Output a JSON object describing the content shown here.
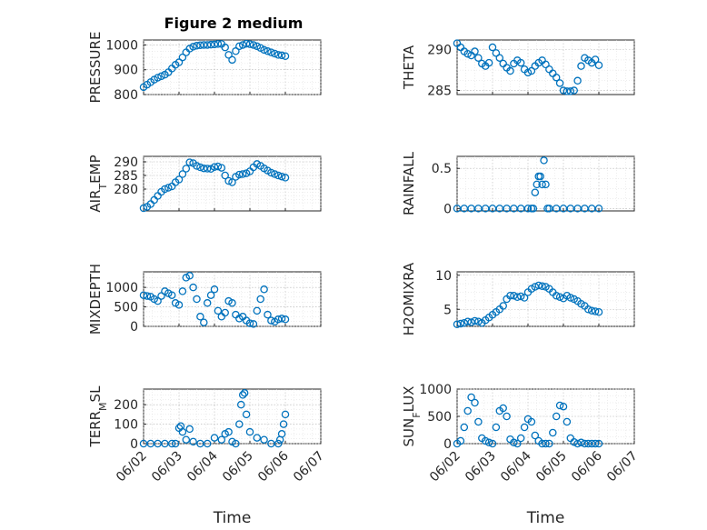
{
  "figure_title": "Figure 2 medium",
  "colors": {
    "marker": "#0072BD",
    "axis": "#262626",
    "grid": "#b8b8b8"
  },
  "chart_data": [
    {
      "type": "scatter",
      "ylabel": "PRESSURE",
      "title": "Figure 2 medium",
      "xlim": [
        0,
        5
      ],
      "ylim": [
        800,
        1020
      ],
      "yticks": [
        {
          "v": 800,
          "label": "800"
        },
        {
          "v": 900,
          "label": "900"
        },
        {
          "v": 1000,
          "label": "1000"
        }
      ],
      "x": [
        0,
        0.1,
        0.2,
        0.3,
        0.4,
        0.5,
        0.6,
        0.7,
        0.8,
        0.9,
        1.0,
        1.1,
        1.2,
        1.3,
        1.4,
        1.5,
        1.6,
        1.7,
        1.8,
        1.9,
        2.0,
        2.1,
        2.2,
        2.3,
        2.4,
        2.5,
        2.6,
        2.7,
        2.8,
        2.9,
        3.0,
        3.1,
        3.2,
        3.3,
        3.4,
        3.5,
        3.6,
        3.7,
        3.8,
        3.9,
        4.0
      ],
      "y": [
        830,
        840,
        850,
        860,
        868,
        874,
        880,
        890,
        905,
        920,
        930,
        950,
        970,
        985,
        993,
        997,
        999,
        1000,
        1000,
        1001,
        1002,
        1004,
        1004,
        990,
        960,
        940,
        975,
        995,
        1000,
        1005,
        1003,
        1000,
        995,
        988,
        980,
        975,
        970,
        965,
        960,
        958,
        955
      ]
    },
    {
      "type": "scatter",
      "ylabel": "THETA",
      "xlim": [
        0,
        5
      ],
      "ylim": [
        284.5,
        291.2
      ],
      "yticks": [
        {
          "v": 285,
          "label": "285"
        },
        {
          "v": 290,
          "label": "290"
        }
      ],
      "x": [
        0,
        0.1,
        0.2,
        0.3,
        0.4,
        0.5,
        0.6,
        0.7,
        0.8,
        0.9,
        1.0,
        1.1,
        1.2,
        1.3,
        1.4,
        1.5,
        1.6,
        1.7,
        1.8,
        1.9,
        2.0,
        2.1,
        2.2,
        2.3,
        2.4,
        2.5,
        2.6,
        2.7,
        2.8,
        2.9,
        3.0,
        3.1,
        3.2,
        3.3,
        3.4,
        3.5,
        3.6,
        3.7,
        3.8,
        3.9,
        4.0
      ],
      "y": [
        290.8,
        290.3,
        289.8,
        289.5,
        289.3,
        289.8,
        289.0,
        288.3,
        288.0,
        288.4,
        290.3,
        289.6,
        289.0,
        288.3,
        287.8,
        287.4,
        288.3,
        288.7,
        288.4,
        287.6,
        287.2,
        287.4,
        288.0,
        288.4,
        288.7,
        288.2,
        287.6,
        287.1,
        286.6,
        285.9,
        285.0,
        284.9,
        284.9,
        285.0,
        286.2,
        288.0,
        289.0,
        288.7,
        288.4,
        288.8,
        288.1
      ]
    },
    {
      "type": "scatter",
      "ylabel": "AIR",
      "ylabel_sub": "T",
      "ylabel_suffix": "EMP",
      "xlim": [
        0,
        5
      ],
      "ylim": [
        272,
        292
      ],
      "yticks": [
        {
          "v": 280,
          "label": "280"
        },
        {
          "v": 285,
          "label": "285"
        },
        {
          "v": 290,
          "label": "290"
        }
      ],
      "x": [
        0,
        0.1,
        0.2,
        0.3,
        0.4,
        0.5,
        0.6,
        0.7,
        0.8,
        0.9,
        1.0,
        1.1,
        1.2,
        1.3,
        1.4,
        1.5,
        1.6,
        1.7,
        1.8,
        1.9,
        2.0,
        2.1,
        2.2,
        2.3,
        2.4,
        2.5,
        2.6,
        2.7,
        2.8,
        2.9,
        3.0,
        3.1,
        3.2,
        3.3,
        3.4,
        3.5,
        3.6,
        3.7,
        3.8,
        3.9,
        4.0
      ],
      "y": [
        273,
        273.5,
        274.5,
        276,
        277.5,
        279,
        280,
        280.5,
        281,
        282.5,
        283.5,
        285.5,
        287.5,
        289.8,
        289.5,
        288.5,
        288,
        287.6,
        287.5,
        287.4,
        288.1,
        288.3,
        287.8,
        285,
        283,
        282.5,
        284.5,
        285.3,
        285.5,
        285.8,
        286.5,
        288,
        289.2,
        288.5,
        287.6,
        286.8,
        286,
        285.5,
        285,
        284.6,
        284.2
      ]
    },
    {
      "type": "scatter",
      "ylabel": "RAINFALL",
      "xlim": [
        0,
        5
      ],
      "ylim": [
        -0.03,
        0.65
      ],
      "yticks": [
        {
          "v": 0,
          "label": "0"
        },
        {
          "v": 0.5,
          "label": "0.5"
        }
      ],
      "x": [
        0,
        0.2,
        0.4,
        0.6,
        0.8,
        1.0,
        1.2,
        1.4,
        1.6,
        1.8,
        2.0,
        2.1,
        2.15,
        2.2,
        2.25,
        2.3,
        2.35,
        2.4,
        2.45,
        2.5,
        2.55,
        2.6,
        2.8,
        3.0,
        3.2,
        3.4,
        3.6,
        3.8,
        4.0
      ],
      "y": [
        0,
        0,
        0,
        0,
        0,
        0,
        0,
        0,
        0,
        0,
        0,
        0,
        0,
        0.2,
        0.3,
        0.4,
        0.4,
        0.3,
        0.6,
        0.3,
        0,
        0,
        0,
        0,
        0,
        0,
        0,
        0,
        0
      ]
    },
    {
      "type": "scatter",
      "ylabel": "MIXDEPTH",
      "xlim": [
        0,
        5
      ],
      "ylim": [
        0,
        1400
      ],
      "yticks": [
        {
          "v": 0,
          "label": "0"
        },
        {
          "v": 500,
          "label": "500"
        },
        {
          "v": 1000,
          "label": "1000"
        }
      ],
      "x": [
        0,
        0.1,
        0.2,
        0.3,
        0.4,
        0.5,
        0.6,
        0.7,
        0.8,
        0.9,
        1.0,
        1.1,
        1.2,
        1.3,
        1.4,
        1.5,
        1.6,
        1.7,
        1.8,
        1.9,
        2.0,
        2.1,
        2.2,
        2.3,
        2.4,
        2.5,
        2.6,
        2.7,
        2.8,
        2.9,
        3.0,
        3.1,
        3.2,
        3.3,
        3.4,
        3.5,
        3.6,
        3.7,
        3.8,
        3.9,
        4.0
      ],
      "y": [
        800,
        780,
        760,
        700,
        650,
        780,
        900,
        850,
        800,
        600,
        550,
        900,
        1250,
        1300,
        1000,
        700,
        250,
        100,
        600,
        800,
        950,
        400,
        250,
        350,
        650,
        600,
        300,
        200,
        250,
        150,
        80,
        60,
        400,
        700,
        950,
        300,
        150,
        120,
        180,
        200,
        180
      ]
    },
    {
      "type": "scatter",
      "ylabel": "H2OMIXRA",
      "xlim": [
        0,
        5
      ],
      "ylim": [
        2.5,
        10.5
      ],
      "yticks": [
        {
          "v": 5,
          "label": "5"
        },
        {
          "v": 10,
          "label": "10"
        }
      ],
      "x": [
        0,
        0.1,
        0.2,
        0.3,
        0.4,
        0.5,
        0.6,
        0.7,
        0.8,
        0.9,
        1.0,
        1.1,
        1.2,
        1.3,
        1.4,
        1.5,
        1.6,
        1.7,
        1.8,
        1.9,
        2.0,
        2.1,
        2.2,
        2.3,
        2.4,
        2.5,
        2.6,
        2.7,
        2.8,
        2.9,
        3.0,
        3.1,
        3.2,
        3.3,
        3.4,
        3.5,
        3.6,
        3.7,
        3.8,
        3.9,
        4.0
      ],
      "y": [
        2.8,
        2.9,
        3.0,
        3.2,
        3.1,
        3.3,
        3.2,
        3.0,
        3.4,
        3.8,
        4.2,
        4.6,
        5.0,
        5.5,
        6.5,
        7.0,
        7.0,
        6.8,
        6.9,
        6.7,
        7.5,
        8.0,
        8.3,
        8.5,
        8.4,
        8.3,
        8.0,
        7.5,
        7.0,
        6.8,
        6.6,
        7.0,
        6.7,
        6.5,
        6.2,
        5.8,
        5.5,
        5.0,
        4.8,
        4.7,
        4.6
      ]
    },
    {
      "type": "scatter",
      "ylabel": "TERR",
      "ylabel_sub": "M",
      "ylabel_suffix": "SL",
      "xlim": [
        0,
        5
      ],
      "ylim": [
        0,
        280
      ],
      "yticks": [
        {
          "v": 0,
          "label": "0"
        },
        {
          "v": 100,
          "label": "100"
        },
        {
          "v": 200,
          "label": "200"
        }
      ],
      "xticks": [
        "06/02",
        "06/03",
        "06/04",
        "06/05",
        "06/06",
        "06/07"
      ],
      "xlabel": "Time",
      "x": [
        0,
        0.2,
        0.4,
        0.6,
        0.8,
        0.9,
        1.0,
        1.05,
        1.1,
        1.2,
        1.3,
        1.4,
        1.6,
        1.8,
        2.0,
        2.2,
        2.3,
        2.4,
        2.5,
        2.6,
        2.7,
        2.75,
        2.8,
        2.85,
        2.9,
        3.0,
        3.2,
        3.4,
        3.6,
        3.8,
        3.85,
        3.9,
        3.95,
        4.0
      ],
      "y": [
        0,
        0,
        0,
        0,
        0,
        0,
        80,
        90,
        60,
        20,
        75,
        10,
        0,
        0,
        30,
        20,
        50,
        60,
        10,
        0,
        100,
        200,
        250,
        260,
        150,
        60,
        30,
        20,
        0,
        0,
        20,
        50,
        100,
        150
      ]
    },
    {
      "type": "scatter",
      "ylabel": "SUN",
      "ylabel_sub": "F",
      "ylabel_suffix": "LUX",
      "xlim": [
        0,
        5
      ],
      "ylim": [
        0,
        1000
      ],
      "yticks": [
        {
          "v": 0,
          "label": "0"
        },
        {
          "v": 500,
          "label": "500"
        },
        {
          "v": 1000,
          "label": "1000"
        }
      ],
      "xticks": [
        "06/02",
        "06/03",
        "06/04",
        "06/05",
        "06/06",
        "06/07"
      ],
      "xlabel": "Time",
      "x": [
        0,
        0.1,
        0.2,
        0.3,
        0.4,
        0.5,
        0.6,
        0.7,
        0.8,
        0.9,
        1.0,
        1.1,
        1.2,
        1.3,
        1.4,
        1.5,
        1.6,
        1.7,
        1.8,
        1.9,
        2.0,
        2.1,
        2.2,
        2.3,
        2.4,
        2.5,
        2.6,
        2.7,
        2.8,
        2.9,
        3.0,
        3.1,
        3.2,
        3.3,
        3.4,
        3.5,
        3.6,
        3.7,
        3.8,
        3.9,
        4.0
      ],
      "y": [
        0,
        50,
        300,
        600,
        850,
        750,
        400,
        100,
        50,
        20,
        0,
        300,
        600,
        650,
        500,
        80,
        20,
        0,
        100,
        300,
        450,
        400,
        150,
        50,
        0,
        0,
        0,
        200,
        500,
        700,
        680,
        400,
        100,
        30,
        0,
        20,
        0,
        0,
        0,
        0,
        0
      ]
    }
  ]
}
